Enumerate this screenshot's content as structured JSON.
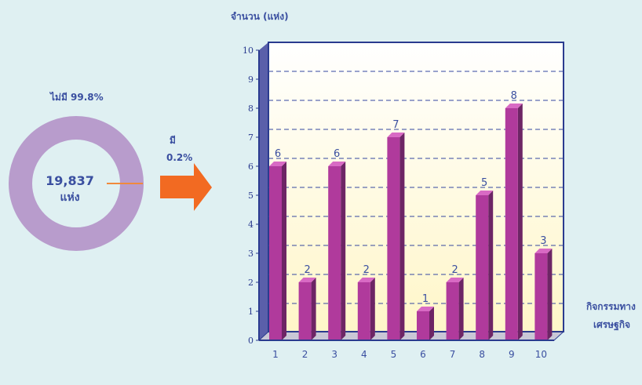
{
  "donut": {
    "center_value": "19,837",
    "center_unit": "แห่ง",
    "no_label": "ไม่มี 99.8%",
    "yes_label": "มี",
    "yes_pct": "0.2%"
  },
  "chart_data": [
    {
      "type": "pie",
      "categories": [
        "ไม่มี",
        "มี"
      ],
      "values": [
        99.8,
        0.2
      ],
      "colors": [
        "#b89ccc",
        "#f08a3c"
      ]
    },
    {
      "type": "bar",
      "title": "",
      "ylabel": "จำนวน (แห่ง)",
      "xlabel_lines": [
        "กิจกรรมทาง",
        "เศรษฐกิจ"
      ],
      "categories": [
        "1",
        "2",
        "3",
        "4",
        "5",
        "6",
        "7",
        "8",
        "9",
        "10"
      ],
      "values": [
        6,
        2,
        6,
        2,
        7,
        1,
        2,
        5,
        8,
        3
      ],
      "ylim": [
        0,
        10
      ],
      "yticks": [
        0,
        1,
        2,
        3,
        4,
        5,
        6,
        7,
        8,
        9,
        10
      ],
      "grid": true,
      "bar_color": "#b03a9c"
    }
  ],
  "colors": {
    "background": "#dff0f2",
    "axis": "#2a3b8f",
    "text": "#3a4fa0",
    "arrow": "#f26a22",
    "grid": "#3347a0"
  }
}
